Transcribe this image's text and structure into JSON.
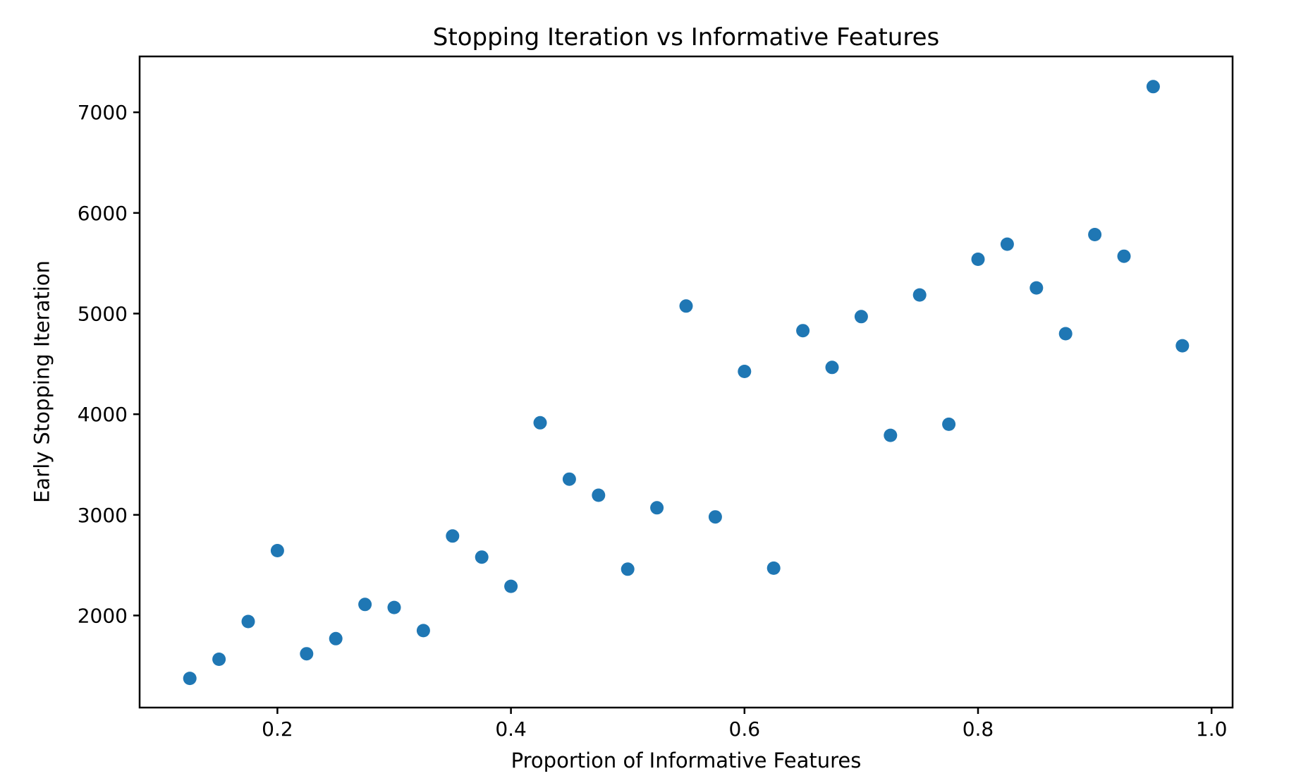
{
  "figure": {
    "background": "#ffffff",
    "spine_color": "#000000",
    "text_color": "#000000"
  },
  "chart_data": {
    "type": "scatter",
    "title": "Stopping Iteration vs Informative Features",
    "xlabel": "Proportion of Informative Features",
    "ylabel": "Early Stopping Iteration",
    "xlim": [
      0.082,
      1.018
    ],
    "ylim": [
      1085,
      7555
    ],
    "grid": false,
    "legend": null,
    "marker_color": "#1f77b4",
    "xticks": {
      "values": [
        0.2,
        0.4,
        0.6,
        0.8,
        1.0
      ],
      "labels": [
        "0.2",
        "0.4",
        "0.6",
        "0.8",
        "1.0"
      ]
    },
    "yticks": {
      "values": [
        2000,
        3000,
        4000,
        5000,
        6000,
        7000
      ],
      "labels": [
        "2000",
        "3000",
        "4000",
        "5000",
        "6000",
        "7000"
      ]
    },
    "series": [
      {
        "name": "early-stopping-iteration",
        "points": [
          [
            0.125,
            1375
          ],
          [
            0.15,
            1565
          ],
          [
            0.175,
            1940
          ],
          [
            0.2,
            2645
          ],
          [
            0.225,
            1620
          ],
          [
            0.25,
            1770
          ],
          [
            0.275,
            2110
          ],
          [
            0.3,
            2080
          ],
          [
            0.325,
            1850
          ],
          [
            0.35,
            2790
          ],
          [
            0.375,
            2580
          ],
          [
            0.4,
            2290
          ],
          [
            0.425,
            3915
          ],
          [
            0.45,
            3355
          ],
          [
            0.475,
            3195
          ],
          [
            0.5,
            2460
          ],
          [
            0.525,
            3070
          ],
          [
            0.55,
            5075
          ],
          [
            0.575,
            2980
          ],
          [
            0.6,
            4425
          ],
          [
            0.625,
            2470
          ],
          [
            0.65,
            4830
          ],
          [
            0.675,
            4465
          ],
          [
            0.7,
            4970
          ],
          [
            0.725,
            3790
          ],
          [
            0.75,
            5185
          ],
          [
            0.775,
            3900
          ],
          [
            0.8,
            5540
          ],
          [
            0.825,
            5690
          ],
          [
            0.85,
            5255
          ],
          [
            0.875,
            4800
          ],
          [
            0.9,
            5785
          ],
          [
            0.925,
            5570
          ],
          [
            0.95,
            7255
          ],
          [
            0.975,
            4680
          ]
        ]
      }
    ]
  }
}
